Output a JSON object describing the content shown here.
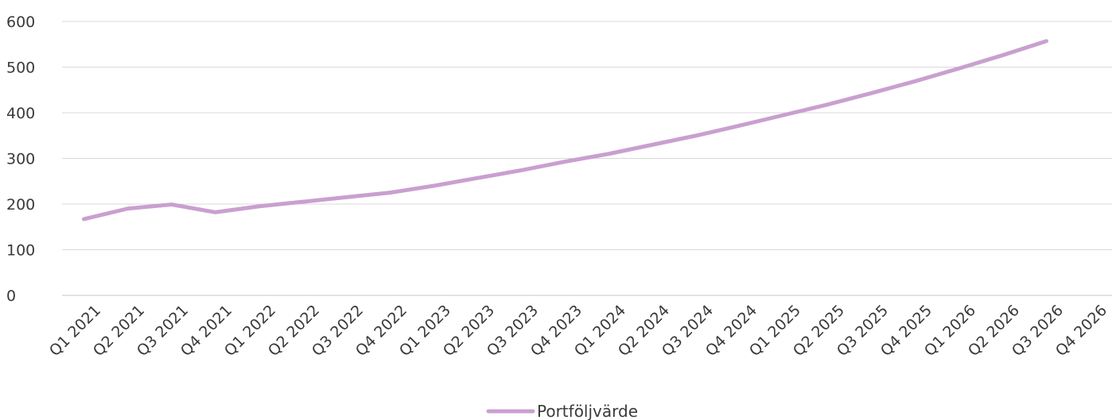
{
  "chart_data": {
    "type": "line",
    "categories": [
      "Q1 2021",
      "Q2 2021",
      "Q3 2021",
      "Q4 2021",
      "Q1 2022",
      "Q2 2022",
      "Q3 2022",
      "Q4 2022",
      "Q1 2023",
      "Q2 2023",
      "Q3 2023",
      "Q4 2023",
      "Q1 2024",
      "Q2 2024",
      "Q3 2024",
      "Q4 2024",
      "Q1 2025",
      "Q2 2025",
      "Q3 2025",
      "Q4 2025",
      "Q1 2026",
      "Q2 2026",
      "Q3 2026",
      "Q4 2026"
    ],
    "series": [
      {
        "name": "Portföljvärde",
        "color": "#c9a0cf",
        "values": [
          167,
          190,
          199,
          182,
          195,
          205,
          215,
          225,
          240,
          257,
          274,
          293,
          310,
          330,
          350,
          372,
          395,
          418,
          443,
          469,
          497,
          526,
          557,
          null
        ]
      }
    ],
    "yticks": [
      0,
      100,
      200,
      300,
      400,
      500,
      600
    ],
    "ylim": [
      0,
      600
    ],
    "grid": true,
    "gridline_color": "#d9d9d9",
    "legend_position": "bottom-center",
    "title": "",
    "xlabel": "",
    "ylabel": ""
  }
}
